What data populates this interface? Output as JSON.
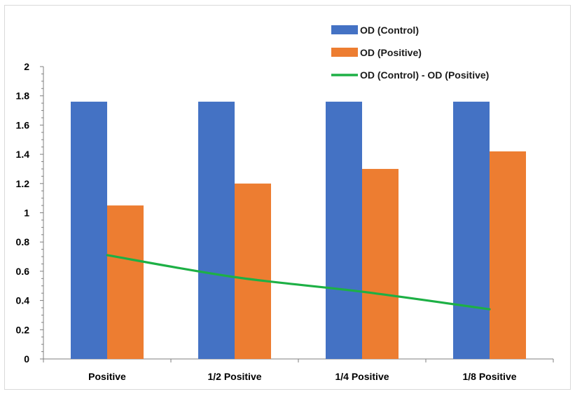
{
  "chart_data": {
    "type": "bar",
    "title": "",
    "xlabel": "",
    "ylabel": "",
    "categories": [
      "Positive",
      "1/2 Positive",
      "1/4 Positive",
      "1/8 Positive"
    ],
    "ylim": [
      0,
      2
    ],
    "yticks": [
      "0",
      "0.2",
      "0.4",
      "0.6",
      "0.8",
      "1",
      "1.2",
      "1.4",
      "1.6",
      "1.8",
      "2"
    ],
    "grid": false,
    "legend_position": "top-right",
    "series": [
      {
        "name": "OD (Control)",
        "kind": "bar",
        "color": "#4472C4",
        "values": [
          1.76,
          1.76,
          1.76,
          1.76
        ]
      },
      {
        "name": "OD (Positive)",
        "kind": "bar",
        "color": "#ED7D31",
        "values": [
          1.05,
          1.2,
          1.3,
          1.42
        ]
      },
      {
        "name": "OD (Control) - OD (Positive)",
        "kind": "line",
        "color": "#1DB045",
        "values": [
          0.71,
          0.56,
          0.46,
          0.34
        ]
      }
    ]
  }
}
